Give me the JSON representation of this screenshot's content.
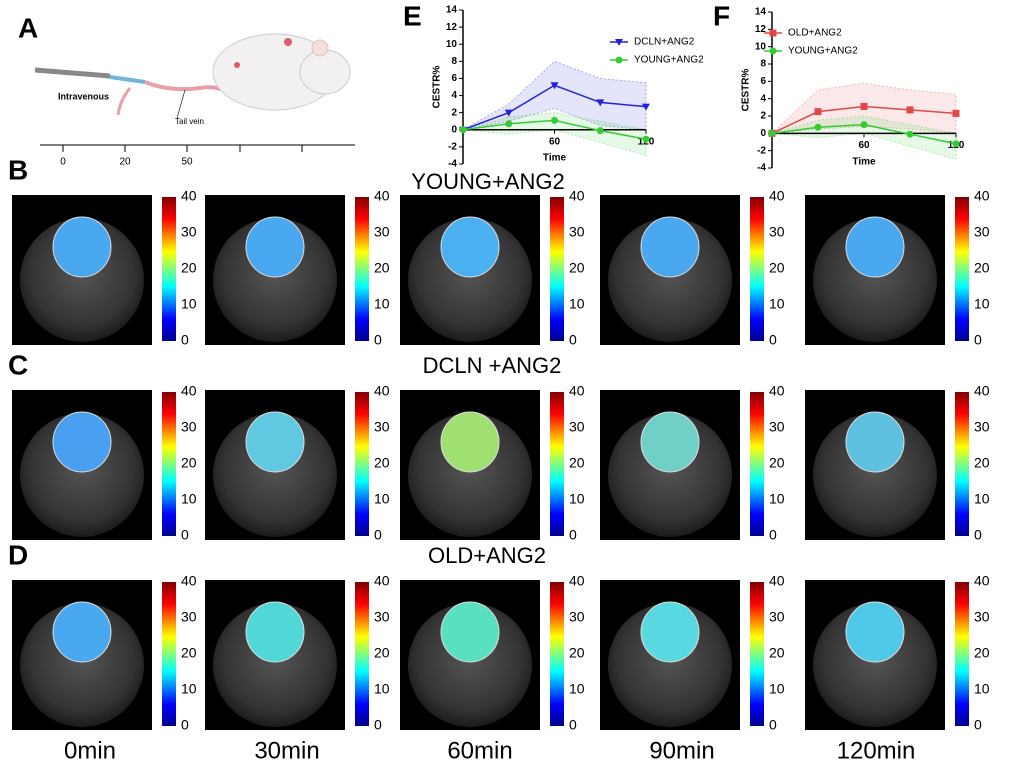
{
  "panel_labels": [
    "A",
    "B",
    "C",
    "D",
    "E",
    "F"
  ],
  "schematic": {
    "labels": [
      "Intravenous",
      "Tail vein"
    ],
    "timeline_ticks": [
      0,
      20,
      50
    ]
  },
  "rows": [
    {
      "title": "YOUNG+ANG2"
    },
    {
      "title": "DCLN +ANG2"
    },
    {
      "title": "OLD+ANG2"
    }
  ],
  "columns": [
    "0min",
    "30min",
    "60min",
    "90min",
    "120min"
  ],
  "colorbar_ticks": [
    0,
    10,
    20,
    30,
    40
  ],
  "chart_data": [
    {
      "type": "line",
      "ylabel": "CESTR%",
      "xlabel": "Time",
      "x": [
        0,
        30,
        60,
        90,
        120
      ],
      "xlim": [
        0,
        120
      ],
      "xticks": [
        60,
        120
      ],
      "ylim": [
        -4,
        14
      ],
      "yticks": [
        -4,
        -2,
        0,
        2,
        4,
        6,
        8,
        10,
        12,
        14
      ],
      "series": [
        {
          "name": "DCLN+ANG2",
          "color": "#2222dd",
          "marker": "triangle-down",
          "values": [
            0,
            2,
            5.2,
            3.2,
            2.7
          ],
          "lower": [
            0,
            1,
            2.5,
            0.5,
            0
          ],
          "upper": [
            0,
            3,
            8,
            6,
            5.5
          ]
        },
        {
          "name": "YOUNG+ANG2",
          "color": "#33cc33",
          "marker": "circle",
          "values": [
            0,
            0.7,
            1.1,
            -0.1,
            -1.1
          ],
          "lower": [
            0,
            -0.5,
            0,
            -1.5,
            -3
          ],
          "upper": [
            0,
            1.5,
            2,
            1,
            0
          ]
        }
      ]
    },
    {
      "type": "line",
      "ylabel": "CESTR%",
      "xlabel": "Time",
      "x": [
        0,
        30,
        60,
        90,
        120
      ],
      "xlim": [
        0,
        120
      ],
      "xticks": [
        60,
        120
      ],
      "ylim": [
        -4,
        14
      ],
      "yticks": [
        -4,
        -2,
        0,
        2,
        4,
        6,
        8,
        10,
        12,
        14
      ],
      "series": [
        {
          "name": "OLD+ANG2",
          "color": "#e04848",
          "marker": "square",
          "values": [
            0,
            2.5,
            3.1,
            2.7,
            2.3
          ],
          "lower": [
            0,
            0.5,
            0.8,
            0.5,
            0
          ],
          "upper": [
            0,
            5,
            5.8,
            5,
            4.5
          ]
        },
        {
          "name": "YOUNG+ANG2",
          "color": "#33cc33",
          "marker": "circle",
          "values": [
            0,
            0.7,
            1.0,
            -0.1,
            -1.2
          ],
          "lower": [
            0,
            -0.5,
            0,
            -1.5,
            -3
          ],
          "upper": [
            0,
            1.5,
            2,
            1,
            0
          ]
        }
      ]
    }
  ]
}
